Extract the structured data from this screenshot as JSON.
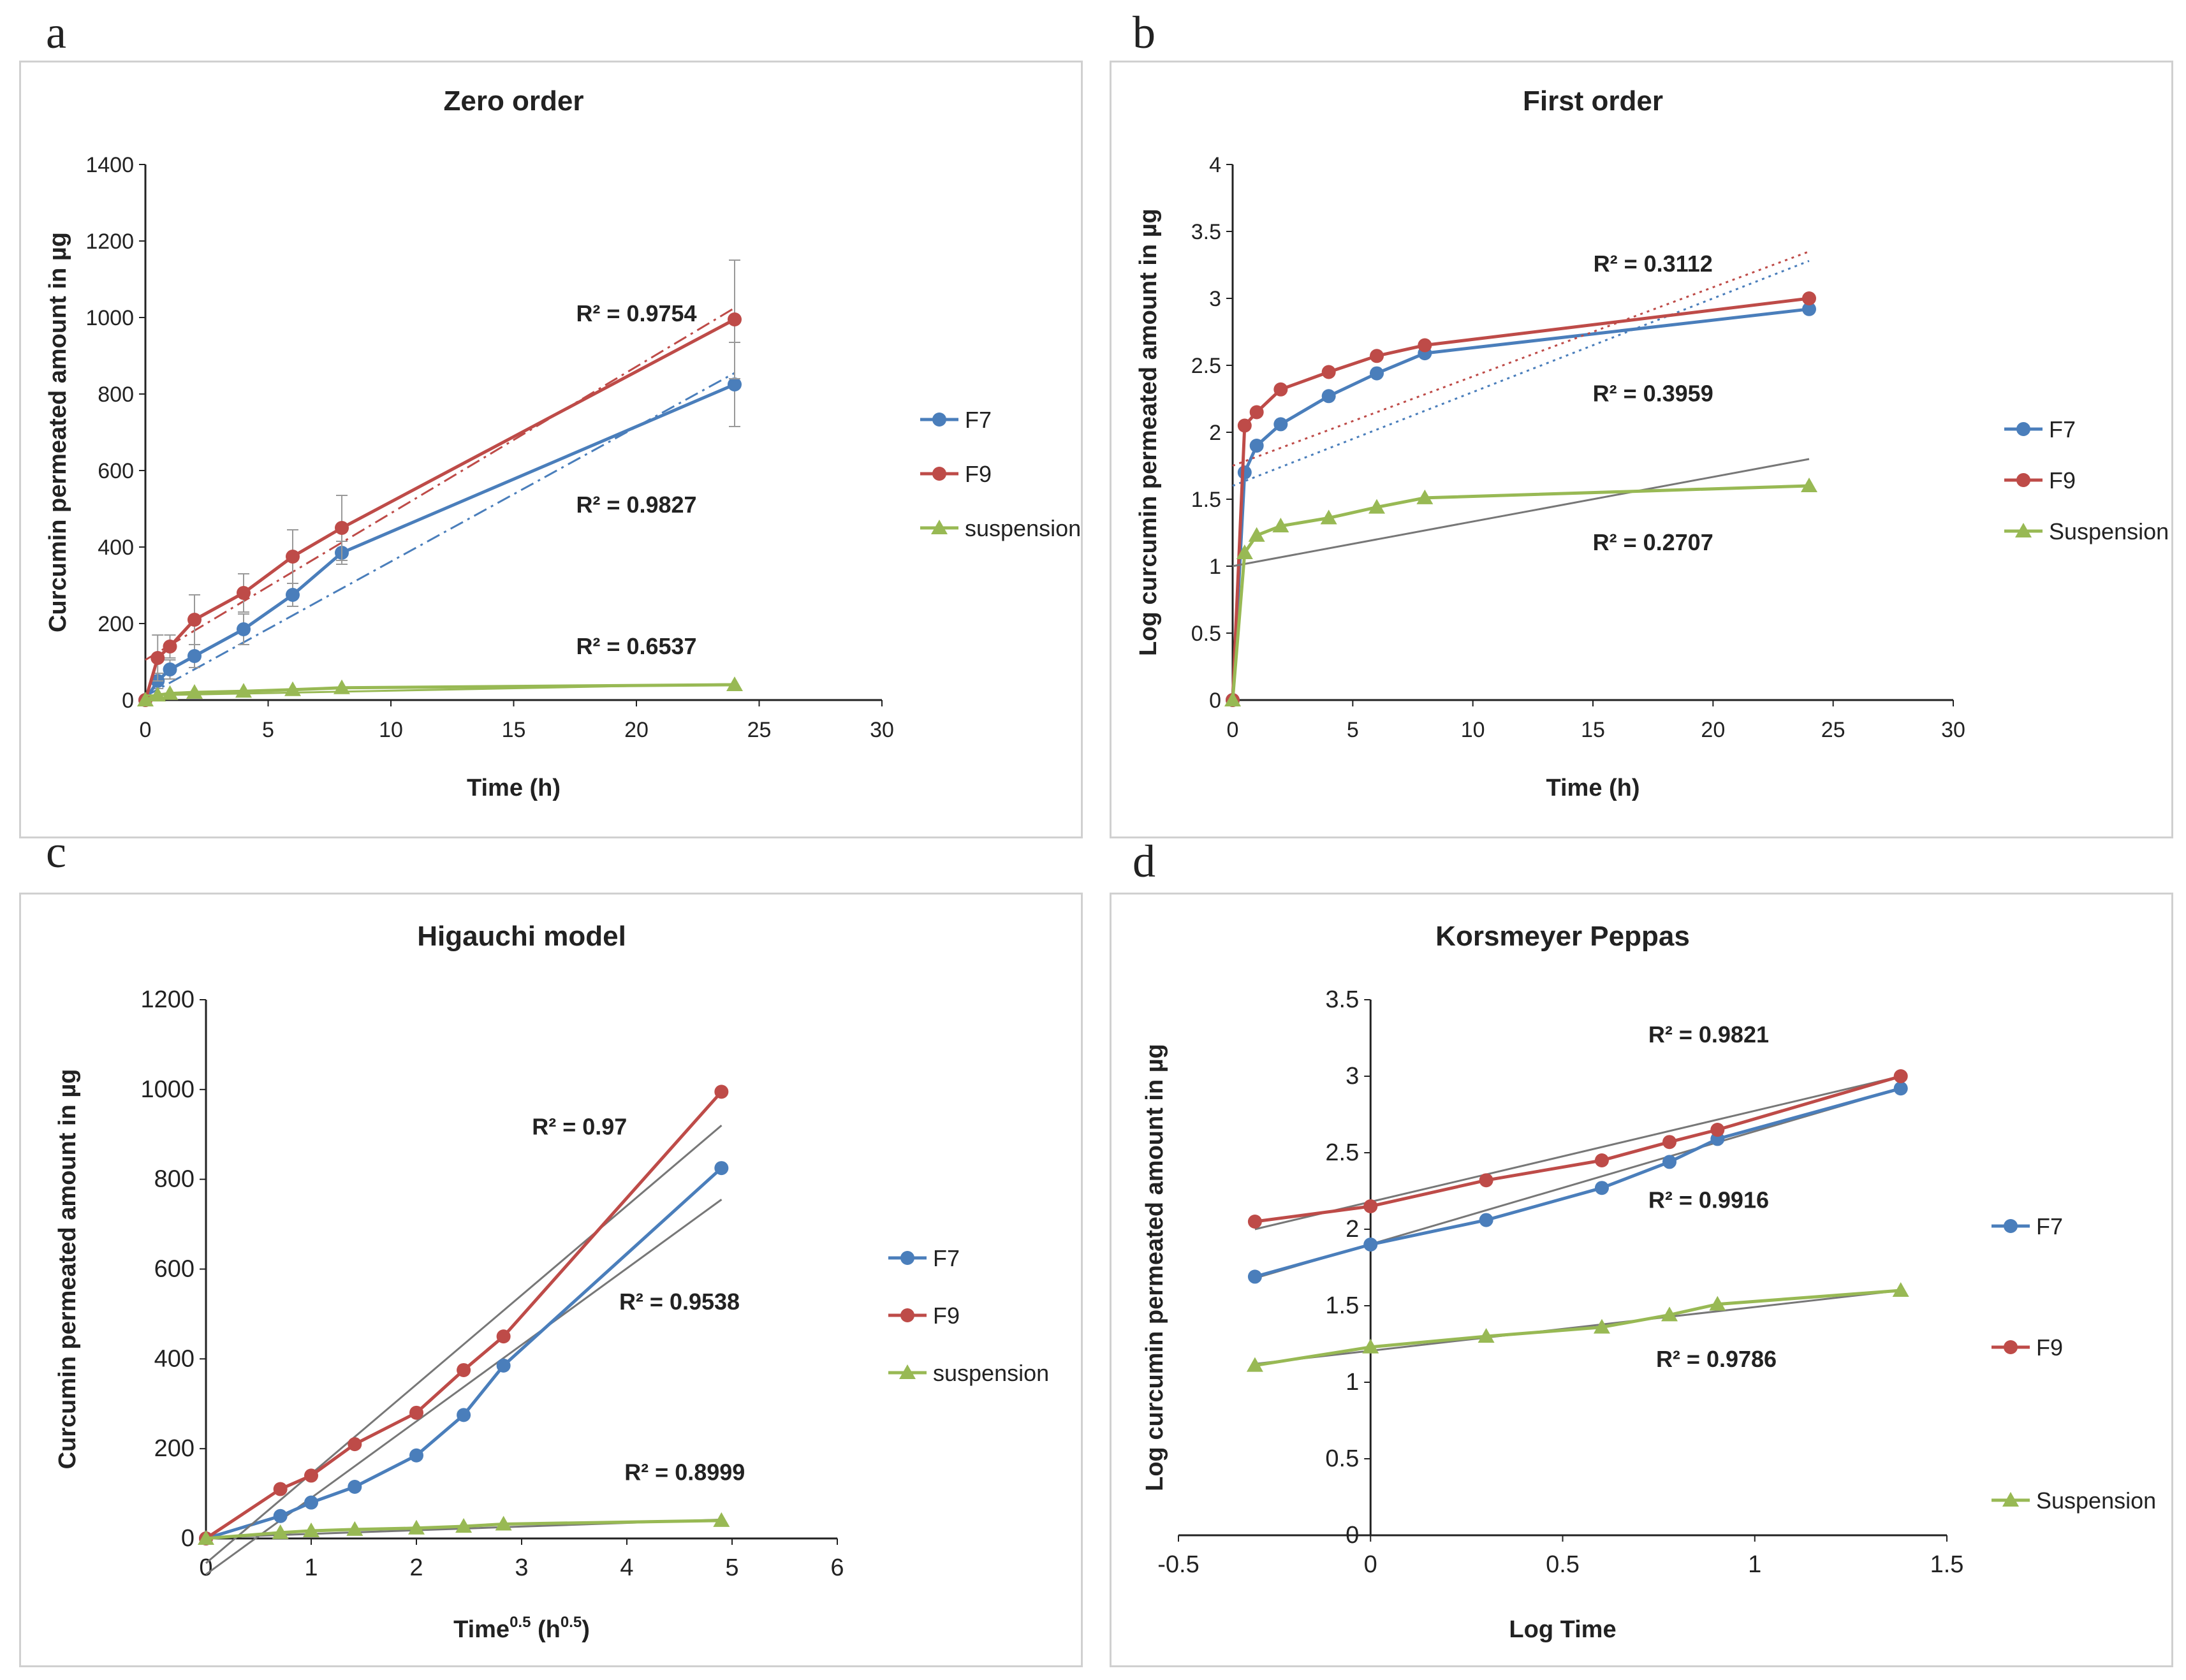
{
  "panels": [
    {
      "letter": "a",
      "chart_data": {
        "type": "line",
        "title": "Zero order",
        "xlabel": "Time (h)",
        "ylabel": "Curcumin permeated amount in µg",
        "xlim": [
          0,
          30
        ],
        "ylim": [
          0,
          1400
        ],
        "xticks": [
          0,
          5,
          10,
          15,
          20,
          25,
          30
        ],
        "yticks": [
          0,
          200,
          400,
          600,
          800,
          1000,
          1200,
          1400
        ],
        "series": [
          {
            "name": "F7",
            "color": "#4a7ebb",
            "marker": "circle",
            "x": [
              0,
              0.5,
              1,
              2,
              4,
              6,
              8,
              24
            ],
            "y": [
              0,
              50,
              80,
              115,
              185,
              275,
              385,
              825
            ],
            "error": [
              0,
              20,
              25,
              30,
              40,
              30,
              30,
              110
            ],
            "trend": {
              "x": [
                0,
                24
              ],
              "y": [
                10,
                855
              ],
              "style": "dashdot"
            }
          },
          {
            "name": "F9",
            "color": "#be4b48",
            "marker": "circle",
            "x": [
              0,
              0.5,
              1,
              2,
              4,
              6,
              8,
              24
            ],
            "y": [
              0,
              110,
              140,
              210,
              280,
              375,
              450,
              995
            ],
            "error": [
              0,
              60,
              30,
              65,
              50,
              70,
              85,
              155
            ],
            "trend": {
              "x": [
                0,
                24
              ],
              "y": [
                105,
                1025
              ],
              "style": "dashdot"
            }
          },
          {
            "name": "suspension",
            "color": "#98b954",
            "marker": "triangle",
            "x": [
              0,
              0.5,
              1,
              2,
              4,
              6,
              8,
              24
            ],
            "y": [
              0,
              13,
              17,
              20,
              23,
              27,
              32,
              40
            ],
            "trend": {
              "x": [
                0,
                24
              ],
              "y": [
                12,
                42
              ],
              "style": "solid"
            }
          }
        ],
        "annotations": [
          {
            "text": "R² = 0.9754",
            "x": 20,
            "y": 990
          },
          {
            "text": "R² = 0.9827",
            "x": 20,
            "y": 490
          },
          {
            "text": "R² = 0.6537",
            "x": 20,
            "y": 120
          }
        ],
        "legend": [
          "F7",
          "F9",
          "suspension"
        ]
      }
    },
    {
      "letter": "b",
      "chart_data": {
        "type": "line",
        "title": "First order",
        "xlabel": "Time (h)",
        "ylabel": "Log curcumin permeated amount in µg",
        "xlim": [
          0,
          30
        ],
        "ylim": [
          0,
          4
        ],
        "xticks": [
          0,
          5,
          10,
          15,
          20,
          25,
          30
        ],
        "yticks": [
          0,
          0.5,
          1,
          1.5,
          2,
          2.5,
          3,
          3.5,
          4
        ],
        "series": [
          {
            "name": "F7",
            "color": "#4a7ebb",
            "marker": "circle",
            "x": [
              0,
              0.5,
              1,
              2,
              4,
              6,
              8,
              24
            ],
            "y": [
              0,
              1.7,
              1.9,
              2.06,
              2.27,
              2.44,
              2.59,
              2.92
            ],
            "trend": {
              "x": [
                0,
                24
              ],
              "y": [
                1.6,
                3.28
              ],
              "style": "dotted"
            }
          },
          {
            "name": "F9",
            "color": "#be4b48",
            "marker": "circle",
            "x": [
              0,
              0.5,
              1,
              2,
              4,
              6,
              8,
              24
            ],
            "y": [
              0,
              2.05,
              2.15,
              2.32,
              2.45,
              2.57,
              2.65,
              3.0
            ],
            "trend": {
              "x": [
                0,
                24
              ],
              "y": [
                1.75,
                3.35
              ],
              "style": "dotted"
            }
          },
          {
            "name": "Suspension",
            "color": "#98b954",
            "marker": "triangle",
            "x": [
              0,
              0.5,
              1,
              2,
              4,
              6,
              8,
              24
            ],
            "y": [
              0,
              1.1,
              1.23,
              1.3,
              1.36,
              1.44,
              1.51,
              1.6
            ],
            "trend": {
              "x": [
                0,
                24
              ],
              "y": [
                1.0,
                1.8
              ],
              "style": "solid"
            }
          }
        ],
        "annotations": [
          {
            "text": "R² = 0.3112",
            "x": 17.5,
            "y": 3.2
          },
          {
            "text": "R² = 0.3959",
            "x": 17.5,
            "y": 2.23
          },
          {
            "text": "R² = 0.2707",
            "x": 17.5,
            "y": 1.12
          }
        ],
        "legend": [
          "F7",
          "F9",
          "Suspension"
        ]
      }
    },
    {
      "letter": "c",
      "chart_data": {
        "type": "line",
        "title": "Higauchi model",
        "xlabel": "Time",
        "xlabel_sup": "0.5",
        "xlabel_unit": " (h",
        "xlabel_unit_sup": "0.5",
        "xlabel_end": ")",
        "ylabel": "Curcumin permeated amount in µg",
        "xlim": [
          0,
          6
        ],
        "ylim": [
          0,
          1200
        ],
        "xticks": [
          0,
          1,
          2,
          3,
          4,
          5,
          6
        ],
        "yticks": [
          0,
          200,
          400,
          600,
          800,
          1000,
          1200
        ],
        "series": [
          {
            "name": "F7",
            "color": "#4a7ebb",
            "marker": "circle",
            "x": [
              0,
              0.707,
              1,
              1.414,
              2,
              2.449,
              2.828,
              4.899
            ],
            "y": [
              0,
              50,
              80,
              115,
              185,
              275,
              385,
              825
            ],
            "trend": {
              "x": [
                0,
                4.9
              ],
              "y": [
                -80,
                755
              ],
              "style": "solid"
            }
          },
          {
            "name": "F9",
            "color": "#be4b48",
            "marker": "circle",
            "x": [
              0,
              0.707,
              1,
              1.414,
              2,
              2.449,
              2.828,
              4.899
            ],
            "y": [
              0,
              110,
              140,
              210,
              280,
              375,
              450,
              995
            ],
            "trend": {
              "x": [
                0,
                4.9
              ],
              "y": [
                -55,
                920
              ],
              "style": "solid"
            }
          },
          {
            "name": "suspension",
            "color": "#98b954",
            "marker": "triangle",
            "x": [
              0,
              0.707,
              1,
              1.414,
              2,
              2.449,
              2.828,
              4.899
            ],
            "y": [
              0,
              13,
              17,
              20,
              23,
              27,
              32,
              40
            ],
            "trend": {
              "x": [
                0,
                4.9
              ],
              "y": [
                2,
                42
              ],
              "style": "solid"
            }
          }
        ],
        "annotations": [
          {
            "text": "R² = 0.97",
            "x": 3.55,
            "y": 900
          },
          {
            "text": "R² = 0.9538",
            "x": 4.5,
            "y": 510
          },
          {
            "text": "R² = 0.8999",
            "x": 4.55,
            "y": 130
          }
        ],
        "legend": [
          "F7",
          "F9",
          "suspension"
        ]
      }
    },
    {
      "letter": "d",
      "chart_data": {
        "type": "line",
        "title": "Korsmeyer Peppas",
        "xlabel": "Log Time",
        "ylabel": "Log curcumin permeated amount in µg",
        "xlim": [
          -0.5,
          1.5
        ],
        "ylim": [
          0,
          3.5
        ],
        "xticks": [
          -0.5,
          0,
          0.5,
          1,
          1.5
        ],
        "yticks": [
          0,
          0.5,
          1,
          1.5,
          2,
          2.5,
          3,
          3.5
        ],
        "series": [
          {
            "name": "F7",
            "color": "#4a7ebb",
            "marker": "circle",
            "x": [
              -0.301,
              0,
              0.301,
              0.602,
              0.778,
              0.903,
              1.38
            ],
            "y": [
              1.69,
              1.9,
              2.06,
              2.27,
              2.44,
              2.59,
              2.92
            ],
            "trend": {
              "x": [
                -0.301,
                1.38
              ],
              "y": [
                1.68,
                2.92
              ],
              "style": "solid"
            }
          },
          {
            "name": "F9",
            "color": "#be4b48",
            "marker": "circle",
            "x": [
              -0.301,
              0,
              0.301,
              0.602,
              0.778,
              0.903,
              1.38
            ],
            "y": [
              2.05,
              2.15,
              2.32,
              2.45,
              2.57,
              2.65,
              3.0
            ],
            "trend": {
              "x": [
                -0.301,
                1.38
              ],
              "y": [
                2.0,
                3.0
              ],
              "style": "solid"
            }
          },
          {
            "name": "Suspension",
            "color": "#98b954",
            "marker": "triangle",
            "x": [
              -0.301,
              0,
              0.301,
              0.602,
              0.778,
              0.903,
              1.38
            ],
            "y": [
              1.11,
              1.23,
              1.3,
              1.36,
              1.44,
              1.51,
              1.6
            ],
            "trend": {
              "x": [
                -0.301,
                1.38
              ],
              "y": [
                1.12,
                1.6
              ],
              "style": "solid"
            }
          }
        ],
        "annotations": [
          {
            "text": "R² = 0.9821",
            "x": 0.88,
            "y": 3.22
          },
          {
            "text": "R² = 0.9916",
            "x": 0.88,
            "y": 2.14
          },
          {
            "text": "R² = 0.9786",
            "x": 0.9,
            "y": 1.1
          }
        ],
        "legend": [
          "F7",
          "F9",
          "Suspension"
        ]
      }
    }
  ]
}
